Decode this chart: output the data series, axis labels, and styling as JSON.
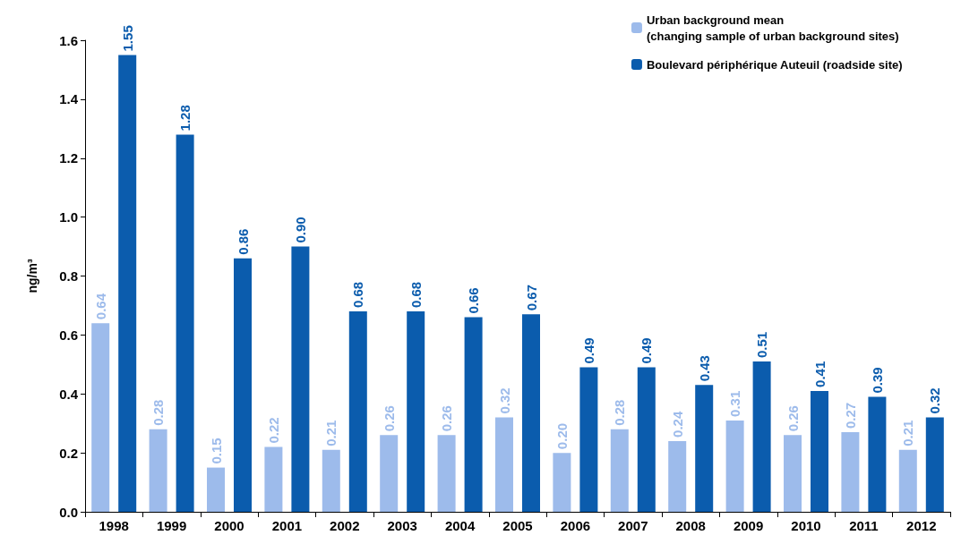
{
  "chart_data": {
    "type": "bar",
    "ylabel": "ng/m³",
    "categories": [
      "1998",
      "1999",
      "2000",
      "2001",
      "2002",
      "2003",
      "2004",
      "2005",
      "2006",
      "2007",
      "2008",
      "2009",
      "2010",
      "2011",
      "2012"
    ],
    "series": [
      {
        "name": "Urban background mean\n(changing sample of urban background sites)",
        "color": "#9dbbeb",
        "values": [
          0.64,
          0.28,
          0.15,
          0.22,
          0.21,
          0.26,
          0.26,
          0.32,
          0.2,
          0.28,
          0.24,
          0.31,
          0.26,
          0.27,
          0.21
        ],
        "value_labels": [
          "0.64",
          "0.28",
          "0.15",
          "0.22",
          "0.21",
          "0.26",
          "0.26",
          "0.32",
          "0.20",
          "0.28",
          "0.24",
          "0.31",
          "0.26",
          "0.27",
          "0.21"
        ]
      },
      {
        "name": "Boulevard périphérique Auteuil (roadside site)",
        "color": "#0b5cad",
        "values": [
          1.55,
          1.28,
          0.86,
          0.9,
          0.68,
          0.68,
          0.66,
          0.67,
          0.49,
          0.49,
          0.43,
          0.51,
          0.41,
          0.39,
          0.32
        ],
        "value_labels": [
          "1.55",
          "1.28",
          "0.86",
          "0.90",
          "0.68",
          "0.68",
          "0.66",
          "0.67",
          "0.49",
          "0.49",
          "0.43",
          "0.51",
          "0.41",
          "0.39",
          "0.32"
        ]
      }
    ],
    "ylim": [
      0,
      1.6
    ],
    "yticks": [
      {
        "value": 0,
        "label": "0.0"
      },
      {
        "value": 0.2,
        "label": "0.2"
      },
      {
        "value": 0.4,
        "label": "0.4"
      },
      {
        "value": 0.6,
        "label": "0.6"
      },
      {
        "value": 0.8,
        "label": "0.8"
      },
      {
        "value": 1,
        "label": "1.0"
      },
      {
        "value": 1.2,
        "label": "1.2"
      },
      {
        "value": 1.4,
        "label": "1.4"
      },
      {
        "value": 1.6,
        "label": "1.6"
      }
    ],
    "grid": false,
    "legend": "top right"
  }
}
